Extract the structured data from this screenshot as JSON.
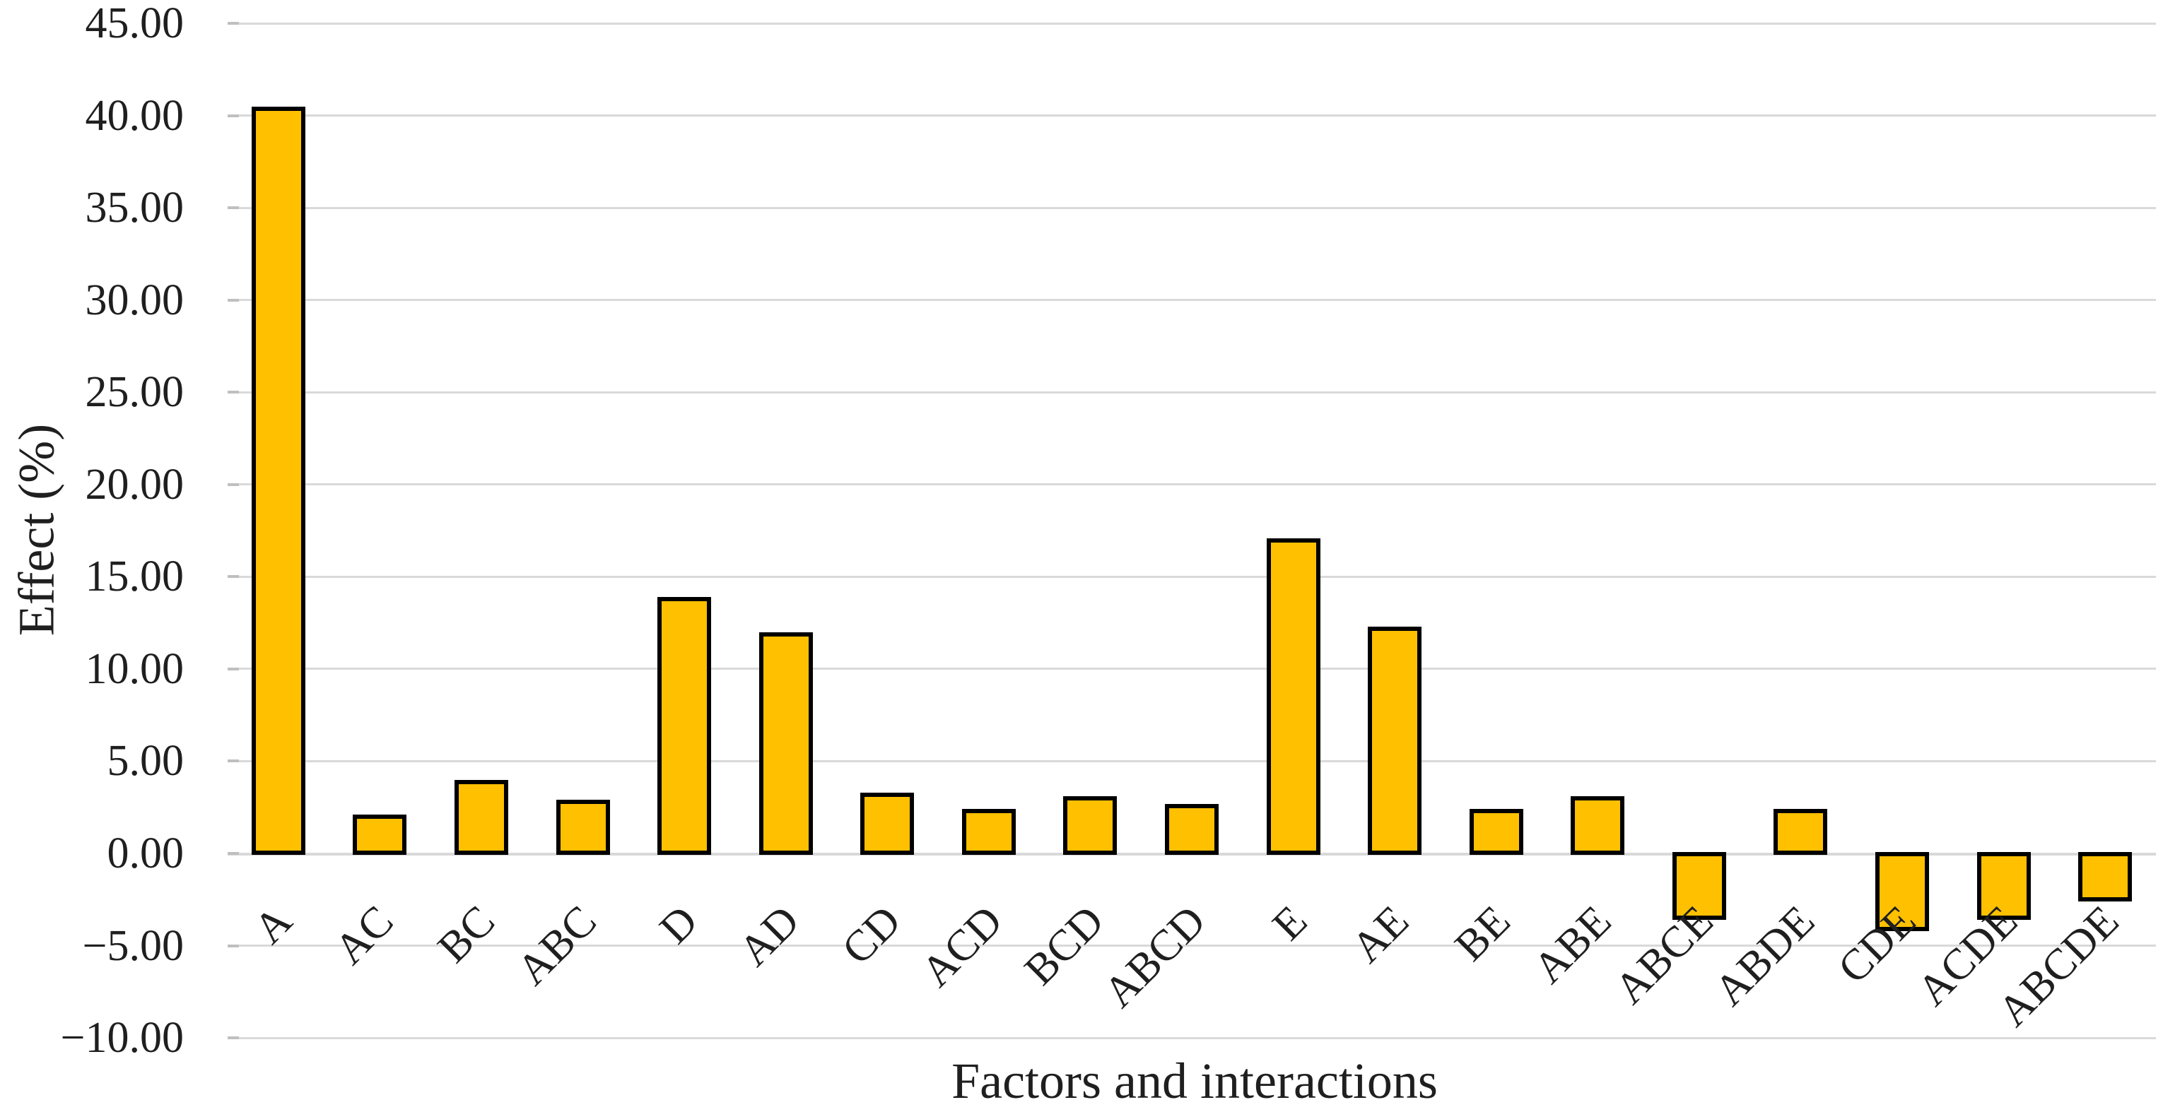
{
  "chart_data": {
    "type": "bar",
    "title": "",
    "xlabel": "Factors and interactions",
    "ylabel": "Effect (%)",
    "categories": [
      "A",
      "AC",
      "BC",
      "ABC",
      "D",
      "AD",
      "CD",
      "ACD",
      "BCD",
      "ABCD",
      "E",
      "AE",
      "BE",
      "ABE",
      "ABCE",
      "ABDE",
      "CDE",
      "ACDE",
      "ABCDE"
    ],
    "values": [
      40.5,
      2.1,
      4.0,
      2.9,
      13.9,
      12.0,
      3.3,
      2.4,
      3.1,
      2.7,
      17.1,
      12.3,
      2.4,
      3.1,
      -3.6,
      2.4,
      -4.2,
      -3.6,
      -2.6
    ],
    "ylim": [
      -10,
      45
    ],
    "ytick_step": 5,
    "ytick_labels": [
      "45.00",
      "40.00",
      "35.00",
      "30.00",
      "25.00",
      "20.00",
      "15.00",
      "10.00",
      "5.00",
      "0.00",
      "−5.00",
      "−10.00"
    ],
    "ytick_values": [
      45,
      40,
      35,
      30,
      25,
      20,
      15,
      10,
      5,
      0,
      -5,
      -10
    ],
    "legend_position": "none",
    "grid": true,
    "colors": {
      "bar_fill": "#FFC000",
      "bar_border": "#000000",
      "gridline": "#D9D9D9",
      "tick_stub": "#BFBFBF",
      "text": "#1F1F1F",
      "background": "#FFFFFF"
    }
  }
}
